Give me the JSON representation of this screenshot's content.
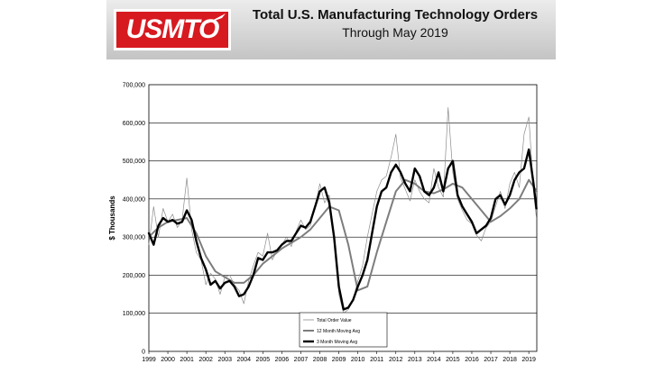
{
  "header": {
    "logo_text": "USMTO",
    "title": "Total U.S. Manufacturing Technology Orders",
    "subtitle": "Through May 2019"
  },
  "colors": {
    "logo_red": "#d71920",
    "total_series": "#8c8c8c",
    "ma12_series": "#7d7d7d",
    "ma3_series": "#000000"
  },
  "chart_data": {
    "type": "line",
    "title": "Total U.S. Manufacturing Technology Orders",
    "subtitle": "Through May 2019",
    "xlabel": "",
    "ylabel": "$ Thousands",
    "xlim": [
      1999.0,
      2019.42
    ],
    "ylim": [
      0,
      700000
    ],
    "yticks": [
      0,
      100000,
      200000,
      300000,
      400000,
      500000,
      600000,
      700000
    ],
    "ytick_labels": [
      "0",
      "100,000",
      "200,000",
      "300,000",
      "400,000",
      "500,000",
      "600,000",
      "700,000"
    ],
    "xticks": [
      1999,
      2000,
      2001,
      2002,
      2003,
      2004,
      2005,
      2006,
      2007,
      2008,
      2009,
      2010,
      2011,
      2012,
      2013,
      2014,
      2015,
      2016,
      2017,
      2018,
      2019
    ],
    "xtick_labels": [
      "1999",
      "2000",
      "2001",
      "2002",
      "2003",
      "2004",
      "2005",
      "2006",
      "2007",
      "2008",
      "2009",
      "2010",
      "2011",
      "2012",
      "2013",
      "2014",
      "2015",
      "2016",
      "2017",
      "2018",
      "2019"
    ],
    "grid": true,
    "legend_position": "bottom-center",
    "series": [
      {
        "name": "Total Order Value",
        "style": "thin-gray",
        "x": [
          1999.0,
          1999.25,
          1999.5,
          1999.75,
          2000.0,
          2000.25,
          2000.5,
          2000.75,
          2001.0,
          2001.25,
          2001.5,
          2001.75,
          2002.0,
          2002.25,
          2002.5,
          2002.75,
          2003.0,
          2003.25,
          2003.5,
          2003.75,
          2004.0,
          2004.25,
          2004.5,
          2004.75,
          2005.0,
          2005.25,
          2005.5,
          2005.75,
          2006.0,
          2006.25,
          2006.5,
          2006.75,
          2007.0,
          2007.25,
          2007.5,
          2007.75,
          2008.0,
          2008.25,
          2008.5,
          2008.75,
          2009.0,
          2009.25,
          2009.5,
          2009.75,
          2010.0,
          2010.25,
          2010.5,
          2010.75,
          2011.0,
          2011.25,
          2011.5,
          2011.75,
          2012.0,
          2012.25,
          2012.5,
          2012.75,
          2013.0,
          2013.25,
          2013.5,
          2013.75,
          2014.0,
          2014.25,
          2014.5,
          2014.75,
          2015.0,
          2015.25,
          2015.5,
          2015.75,
          2016.0,
          2016.25,
          2016.5,
          2016.75,
          2017.0,
          2017.25,
          2017.5,
          2017.75,
          2018.0,
          2018.25,
          2018.5,
          2018.75,
          2019.0,
          2019.25,
          2019.4
        ],
        "values": [
          280000,
          380000,
          300000,
          375000,
          340000,
          360000,
          325000,
          345000,
          455000,
          320000,
          260000,
          240000,
          175000,
          205000,
          190000,
          150000,
          195000,
          200000,
          175000,
          160000,
          125000,
          185000,
          225000,
          260000,
          250000,
          310000,
          240000,
          265000,
          280000,
          300000,
          275000,
          315000,
          345000,
          320000,
          330000,
          380000,
          440000,
          390000,
          410000,
          300000,
          150000,
          100000,
          110000,
          135000,
          185000,
          225000,
          300000,
          360000,
          420000,
          450000,
          460000,
          510000,
          570000,
          455000,
          425000,
          395000,
          450000,
          420000,
          400000,
          390000,
          480000,
          430000,
          405000,
          640000,
          470000,
          400000,
          370000,
          345000,
          335000,
          305000,
          290000,
          325000,
          340000,
          380000,
          420000,
          375000,
          440000,
          470000,
          430000,
          570000,
          615000,
          420000,
          350000
        ]
      },
      {
        "name": "12 Month Moving Avg",
        "style": "medium-gray",
        "x": [
          1999.0,
          1999.5,
          2000.0,
          2000.5,
          2001.0,
          2001.5,
          2002.0,
          2002.5,
          2003.0,
          2003.5,
          2004.0,
          2004.5,
          2005.0,
          2005.5,
          2006.0,
          2006.5,
          2007.0,
          2007.5,
          2008.0,
          2008.5,
          2009.0,
          2009.5,
          2010.0,
          2010.5,
          2011.0,
          2011.5,
          2012.0,
          2012.5,
          2013.0,
          2013.5,
          2014.0,
          2014.5,
          2015.0,
          2015.5,
          2016.0,
          2016.5,
          2017.0,
          2017.5,
          2018.0,
          2018.5,
          2019.0,
          2019.42
        ],
        "values": [
          300000,
          325000,
          340000,
          345000,
          350000,
          310000,
          250000,
          210000,
          195000,
          180000,
          180000,
          200000,
          230000,
          250000,
          270000,
          285000,
          300000,
          320000,
          350000,
          380000,
          370000,
          280000,
          160000,
          170000,
          260000,
          340000,
          420000,
          450000,
          440000,
          420000,
          415000,
          425000,
          440000,
          430000,
          400000,
          370000,
          340000,
          355000,
          375000,
          400000,
          450000,
          420000
        ]
      },
      {
        "name": "3 Month Moving Avg",
        "style": "thick-black",
        "x": [
          1999.0,
          1999.25,
          1999.5,
          1999.75,
          2000.0,
          2000.25,
          2000.5,
          2000.75,
          2001.0,
          2001.25,
          2001.5,
          2001.75,
          2002.0,
          2002.25,
          2002.5,
          2002.75,
          2003.0,
          2003.25,
          2003.5,
          2003.75,
          2004.0,
          2004.25,
          2004.5,
          2004.75,
          2005.0,
          2005.25,
          2005.5,
          2005.75,
          2006.0,
          2006.25,
          2006.5,
          2006.75,
          2007.0,
          2007.25,
          2007.5,
          2007.75,
          2008.0,
          2008.25,
          2008.5,
          2008.75,
          2009.0,
          2009.25,
          2009.5,
          2009.75,
          2010.0,
          2010.25,
          2010.5,
          2010.75,
          2011.0,
          2011.25,
          2011.5,
          2011.75,
          2012.0,
          2012.25,
          2012.5,
          2012.75,
          2013.0,
          2013.25,
          2013.5,
          2013.75,
          2014.0,
          2014.25,
          2014.5,
          2014.75,
          2015.0,
          2015.25,
          2015.5,
          2015.75,
          2016.0,
          2016.25,
          2016.5,
          2016.75,
          2017.0,
          2017.25,
          2017.5,
          2017.75,
          2018.0,
          2018.25,
          2018.5,
          2018.75,
          2019.0,
          2019.25,
          2019.4
        ],
        "values": [
          310000,
          280000,
          330000,
          350000,
          340000,
          345000,
          335000,
          340000,
          370000,
          345000,
          290000,
          245000,
          215000,
          175000,
          185000,
          165000,
          180000,
          185000,
          170000,
          145000,
          150000,
          170000,
          200000,
          245000,
          240000,
          260000,
          260000,
          265000,
          280000,
          290000,
          290000,
          310000,
          330000,
          325000,
          340000,
          380000,
          420000,
          430000,
          390000,
          300000,
          170000,
          110000,
          115000,
          135000,
          170000,
          200000,
          240000,
          310000,
          380000,
          420000,
          430000,
          470000,
          490000,
          470000,
          440000,
          420000,
          480000,
          460000,
          420000,
          410000,
          430000,
          470000,
          420000,
          480000,
          500000,
          410000,
          380000,
          360000,
          340000,
          310000,
          320000,
          330000,
          350000,
          400000,
          410000,
          385000,
          410000,
          450000,
          470000,
          480000,
          530000,
          440000,
          375000
        ]
      }
    ]
  }
}
